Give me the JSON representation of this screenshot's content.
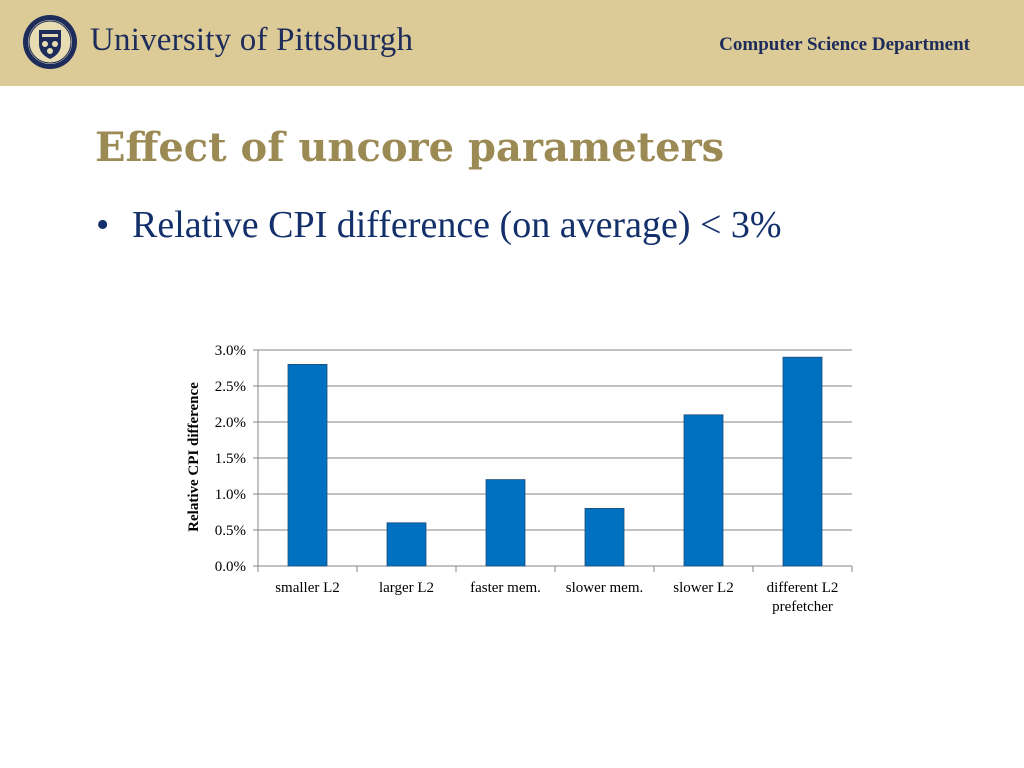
{
  "header": {
    "university": "University of Pittsburgh",
    "department": "Computer Science Department",
    "seal_icon": "university-seal-icon"
  },
  "slide": {
    "title": "Effect of uncore parameters",
    "bullets": [
      {
        "marker": "•",
        "text": "Relative CPI difference (on average) < 3%"
      }
    ]
  },
  "colors": {
    "header_bg": "#dccb97",
    "title": "#9c8a55",
    "bullet_text": "#13306b",
    "bar": "#0070c0"
  },
  "chart_data": {
    "type": "bar",
    "categories": [
      [
        "smaller L2"
      ],
      [
        "larger L2"
      ],
      [
        "faster mem."
      ],
      [
        "slower mem."
      ],
      [
        "slower L2"
      ],
      [
        "different L2",
        "prefetcher"
      ]
    ],
    "values": [
      2.8,
      0.6,
      1.2,
      0.8,
      2.1,
      2.9
    ],
    "ylabel": "Relative CPI difference",
    "ylim": [
      0,
      3.0
    ],
    "yticks": [
      "0.0%",
      "0.5%",
      "1.0%",
      "1.5%",
      "2.0%",
      "2.5%",
      "3.0%"
    ],
    "tick_values": [
      0,
      0.5,
      1.0,
      1.5,
      2.0,
      2.5,
      3.0
    ],
    "grid": true,
    "legend": "none"
  }
}
